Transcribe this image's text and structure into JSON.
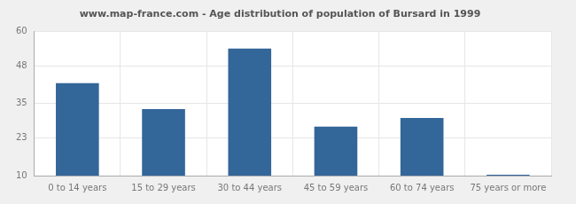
{
  "chart_data": {
    "type": "bar",
    "title": "www.map-france.com - Age distribution of population of Bursard in 1999",
    "categories": [
      "0 to 14 years",
      "15 to 29 years",
      "30 to 44 years",
      "45 to 59 years",
      "60 to 74 years",
      "75 years or more"
    ],
    "values": [
      42,
      33,
      54,
      27,
      30,
      10.3
    ],
    "color": "#336699",
    "ylim": [
      10,
      60
    ],
    "yticks": [
      10,
      23,
      35,
      48,
      60
    ],
    "grid": true
  }
}
